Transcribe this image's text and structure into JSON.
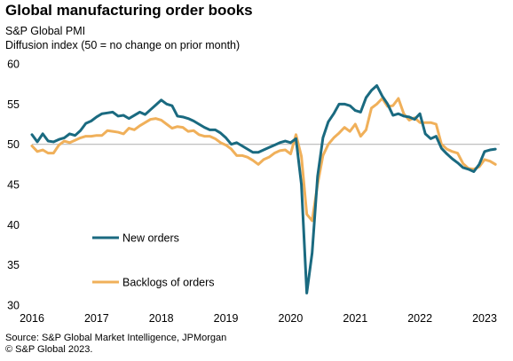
{
  "title": "Global manufacturing order books",
  "subtitle_line1": "S&P Global PMI",
  "subtitle_line2": "Diffusion index (50 = no change on prior month)",
  "source_line1": "Source: S&P Global Market Intelligence, JPMorgan",
  "source_line2": "© S&P Global 2023.",
  "colors": {
    "new_orders": "#1a6a80",
    "backlogs": "#f0b05a",
    "reference_line": "#b8b8b8"
  },
  "chart_data": {
    "type": "line",
    "ylim": [
      30,
      60
    ],
    "yticks": [
      30,
      35,
      40,
      45,
      50,
      55,
      60
    ],
    "xlim": [
      2016.0,
      2023.25
    ],
    "xticks": [
      "2016",
      "2017",
      "2018",
      "2019",
      "2020",
      "2021",
      "2022",
      "2023"
    ],
    "reference_line": 50,
    "grid": false,
    "legend": "left, inside plot",
    "series": [
      {
        "name": "New orders",
        "x": [
          2016.0,
          2016.083,
          2016.167,
          2016.25,
          2016.333,
          2016.417,
          2016.5,
          2016.583,
          2016.667,
          2016.75,
          2016.833,
          2016.917,
          2017.0,
          2017.083,
          2017.167,
          2017.25,
          2017.333,
          2017.417,
          2017.5,
          2017.583,
          2017.667,
          2017.75,
          2017.833,
          2017.917,
          2018.0,
          2018.083,
          2018.167,
          2018.25,
          2018.333,
          2018.417,
          2018.5,
          2018.583,
          2018.667,
          2018.75,
          2018.833,
          2018.917,
          2019.0,
          2019.083,
          2019.167,
          2019.25,
          2019.333,
          2019.417,
          2019.5,
          2019.583,
          2019.667,
          2019.75,
          2019.833,
          2019.917,
          2020.0,
          2020.083,
          2020.167,
          2020.25,
          2020.333,
          2020.417,
          2020.5,
          2020.583,
          2020.667,
          2020.75,
          2020.833,
          2020.917,
          2021.0,
          2021.083,
          2021.167,
          2021.25,
          2021.333,
          2021.417,
          2021.5,
          2021.583,
          2021.667,
          2021.75,
          2021.833,
          2021.917,
          2022.0,
          2022.083,
          2022.167,
          2022.25,
          2022.333,
          2022.417,
          2022.5,
          2022.583,
          2022.667,
          2022.75,
          2022.833,
          2022.917,
          2023.0,
          2023.083,
          2023.167
        ],
        "values": [
          51.2,
          50.3,
          51.3,
          50.4,
          50.3,
          50.6,
          50.8,
          51.3,
          51.1,
          51.7,
          52.6,
          52.9,
          53.4,
          53.8,
          53.9,
          54.0,
          53.5,
          53.6,
          53.2,
          53.6,
          54.0,
          53.7,
          54.3,
          54.9,
          55.5,
          55.0,
          54.8,
          53.5,
          53.4,
          53.2,
          52.9,
          52.5,
          52.1,
          51.8,
          51.8,
          51.4,
          50.8,
          50.0,
          50.2,
          49.8,
          49.4,
          49.0,
          49.0,
          49.3,
          49.6,
          49.9,
          50.2,
          50.4,
          50.2,
          50.7,
          45.0,
          31.5,
          36.5,
          46.0,
          50.8,
          52.8,
          53.8,
          55.0,
          55.0,
          54.8,
          54.2,
          54.0,
          55.8,
          56.7,
          57.3,
          56.0,
          55.0,
          53.6,
          53.8,
          53.5,
          53.4,
          53.1,
          53.8,
          51.3,
          50.7,
          51.0,
          49.5,
          48.8,
          48.2,
          47.7,
          47.1,
          46.9,
          46.6,
          47.5,
          49.1,
          49.3,
          49.4
        ]
      },
      {
        "name": "Backlogs of orders",
        "x": [
          2016.0,
          2016.083,
          2016.167,
          2016.25,
          2016.333,
          2016.417,
          2016.5,
          2016.583,
          2016.667,
          2016.75,
          2016.833,
          2016.917,
          2017.0,
          2017.083,
          2017.167,
          2017.25,
          2017.333,
          2017.417,
          2017.5,
          2017.583,
          2017.667,
          2017.75,
          2017.833,
          2017.917,
          2018.0,
          2018.083,
          2018.167,
          2018.25,
          2018.333,
          2018.417,
          2018.5,
          2018.583,
          2018.667,
          2018.75,
          2018.833,
          2018.917,
          2019.0,
          2019.083,
          2019.167,
          2019.25,
          2019.333,
          2019.417,
          2019.5,
          2019.583,
          2019.667,
          2019.75,
          2019.833,
          2019.917,
          2020.0,
          2020.083,
          2020.167,
          2020.25,
          2020.333,
          2020.417,
          2020.5,
          2020.583,
          2020.667,
          2020.75,
          2020.833,
          2020.917,
          2021.0,
          2021.083,
          2021.167,
          2021.25,
          2021.333,
          2021.417,
          2021.5,
          2021.583,
          2021.667,
          2021.75,
          2021.833,
          2021.917,
          2022.0,
          2022.083,
          2022.167,
          2022.25,
          2022.333,
          2022.417,
          2022.5,
          2022.583,
          2022.667,
          2022.75,
          2022.833,
          2022.917,
          2023.0,
          2023.083,
          2023.167
        ],
        "values": [
          49.8,
          49.1,
          49.3,
          48.9,
          48.9,
          49.9,
          50.4,
          50.2,
          50.5,
          50.8,
          51.0,
          51.0,
          51.1,
          51.1,
          51.7,
          51.6,
          51.5,
          51.3,
          52.0,
          51.8,
          52.3,
          52.7,
          53.1,
          53.2,
          53.0,
          52.5,
          52.0,
          52.2,
          52.1,
          51.6,
          51.7,
          51.2,
          51.0,
          51.0,
          50.7,
          50.2,
          49.9,
          49.4,
          48.6,
          48.6,
          48.4,
          48.0,
          47.5,
          48.1,
          48.4,
          48.9,
          49.2,
          49.3,
          48.8,
          51.2,
          48.5,
          41.3,
          40.5,
          45.0,
          48.6,
          50.0,
          50.8,
          51.4,
          52.1,
          51.6,
          52.5,
          51.0,
          51.8,
          54.5,
          55.0,
          55.7,
          54.7,
          54.8,
          55.7,
          53.8,
          53.0,
          53.3,
          52.7,
          52.7,
          52.7,
          52.5,
          50.0,
          49.4,
          49.1,
          48.9,
          47.6,
          47.0,
          46.9,
          47.2,
          48.1,
          47.9,
          47.5
        ]
      }
    ]
  }
}
